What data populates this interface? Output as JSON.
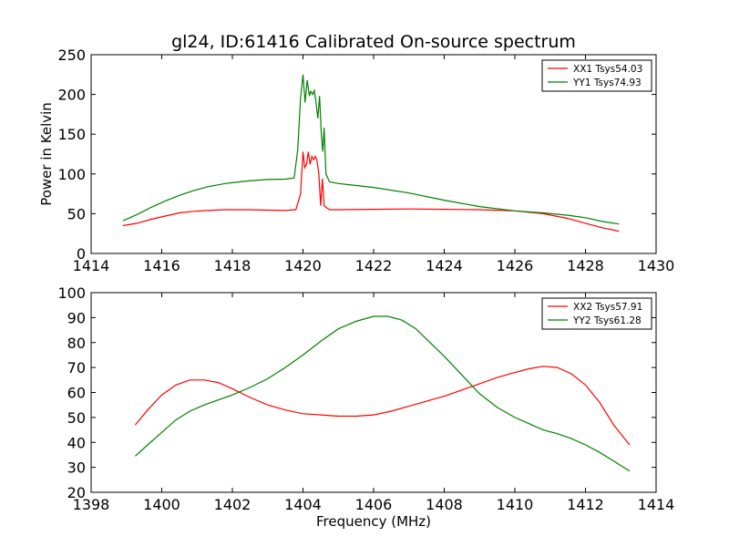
{
  "chart_data": [
    {
      "type": "line",
      "title": "gl24, ID:61416 Calibrated On-source spectrum",
      "xlabel": "",
      "ylabel": "Power in Kelvin",
      "xlim": [
        1414,
        1430
      ],
      "ylim": [
        0,
        250
      ],
      "xticks": [
        1414,
        1416,
        1418,
        1420,
        1422,
        1424,
        1426,
        1428,
        1430
      ],
      "yticks": [
        0,
        50,
        100,
        150,
        200,
        250
      ],
      "grid": false,
      "legend": "top-right",
      "series": [
        {
          "name": "XX1 Tsys54.03",
          "color": "#ff0000",
          "x": [
            1414.9,
            1415.3,
            1415.7,
            1416.1,
            1416.5,
            1416.9,
            1417.3,
            1417.8,
            1418.4,
            1419.0,
            1419.5,
            1419.8,
            1419.93,
            1420.0,
            1420.05,
            1420.1,
            1420.15,
            1420.2,
            1420.25,
            1420.3,
            1420.35,
            1420.4,
            1420.45,
            1420.5,
            1420.55,
            1420.6,
            1420.65,
            1420.75,
            1421.0,
            1422.0,
            1423.0,
            1424.0,
            1425.0,
            1426.0,
            1426.8,
            1427.5,
            1428.0,
            1428.5,
            1428.95
          ],
          "y": [
            35,
            38,
            43,
            47,
            51,
            53,
            54,
            55,
            55,
            54.5,
            54,
            55,
            75,
            128,
            108,
            112,
            128,
            112,
            122,
            118,
            122,
            116,
            100,
            60,
            94,
            60,
            58,
            55,
            55,
            55.5,
            56,
            55.5,
            55,
            53.5,
            50,
            44,
            38,
            32,
            28
          ]
        },
        {
          "name": "YY1 Tsys74.93",
          "color": "#008000",
          "x": [
            1414.9,
            1415.3,
            1415.7,
            1416.1,
            1416.5,
            1416.9,
            1417.3,
            1417.8,
            1418.4,
            1419.0,
            1419.5,
            1419.75,
            1419.85,
            1419.93,
            1420.0,
            1420.06,
            1420.12,
            1420.18,
            1420.22,
            1420.27,
            1420.32,
            1420.37,
            1420.42,
            1420.47,
            1420.52,
            1420.56,
            1420.6,
            1420.65,
            1420.75,
            1421.0,
            1422.0,
            1423.0,
            1424.0,
            1425.0,
            1426.0,
            1426.8,
            1427.5,
            1428.0,
            1428.5,
            1428.95
          ],
          "y": [
            41,
            49,
            58,
            66,
            73,
            79,
            84,
            88,
            91,
            93,
            93.5,
            95,
            130,
            195,
            225,
            190,
            218,
            198,
            204,
            200,
            205,
            190,
            170,
            198,
            150,
            128,
            158,
            100,
            90,
            88,
            83,
            76,
            67,
            59,
            53.5,
            51,
            48,
            45,
            40,
            37
          ]
        }
      ]
    },
    {
      "type": "line",
      "title": "",
      "xlabel": "Frequency (MHz)",
      "ylabel": "",
      "xlim": [
        1398,
        1414
      ],
      "ylim": [
        20,
        100
      ],
      "xticks": [
        1398,
        1400,
        1402,
        1404,
        1406,
        1408,
        1410,
        1412,
        1414
      ],
      "yticks": [
        20,
        30,
        40,
        50,
        60,
        70,
        80,
        90,
        100
      ],
      "grid": false,
      "legend": "top-right",
      "series": [
        {
          "name": "XX2 Tsys57.91",
          "color": "#ff0000",
          "x": [
            1399.25,
            1399.6,
            1400.0,
            1400.4,
            1400.8,
            1401.2,
            1401.6,
            1402.0,
            1402.5,
            1403.0,
            1403.5,
            1404.0,
            1404.5,
            1405.0,
            1405.5,
            1406.0,
            1406.5,
            1407.0,
            1407.5,
            1408.0,
            1408.5,
            1409.0,
            1409.5,
            1410.0,
            1410.4,
            1410.8,
            1411.2,
            1411.6,
            1412.0,
            1412.4,
            1412.8,
            1413.25
          ],
          "y": [
            47,
            53,
            59,
            63,
            65,
            65,
            64,
            61.5,
            58,
            55,
            53,
            51.5,
            51,
            50.5,
            50.5,
            51,
            52.5,
            54.5,
            56.5,
            58.5,
            61,
            63.5,
            66,
            68,
            69.5,
            70.5,
            70,
            67.5,
            63,
            56,
            47,
            39
          ]
        },
        {
          "name": "YY2 Tsys61.28",
          "color": "#008000",
          "x": [
            1399.25,
            1399.6,
            1400.0,
            1400.4,
            1400.8,
            1401.2,
            1401.6,
            1402.0,
            1402.5,
            1403.0,
            1403.5,
            1404.0,
            1404.5,
            1405.0,
            1405.5,
            1406.0,
            1406.4,
            1406.8,
            1407.2,
            1407.6,
            1408.0,
            1408.5,
            1409.0,
            1409.5,
            1410.0,
            1410.4,
            1410.8,
            1411.2,
            1411.6,
            1412.0,
            1412.4,
            1412.8,
            1413.25
          ],
          "y": [
            34.5,
            39,
            44,
            49,
            52.5,
            55,
            57,
            59,
            62,
            65.5,
            70,
            75,
            80.5,
            85.5,
            88.5,
            90.5,
            90.5,
            89,
            85.5,
            80,
            74.5,
            67,
            59.5,
            54,
            50,
            47.5,
            45,
            43.5,
            41.5,
            39,
            36,
            32.5,
            28.5
          ]
        }
      ]
    }
  ]
}
